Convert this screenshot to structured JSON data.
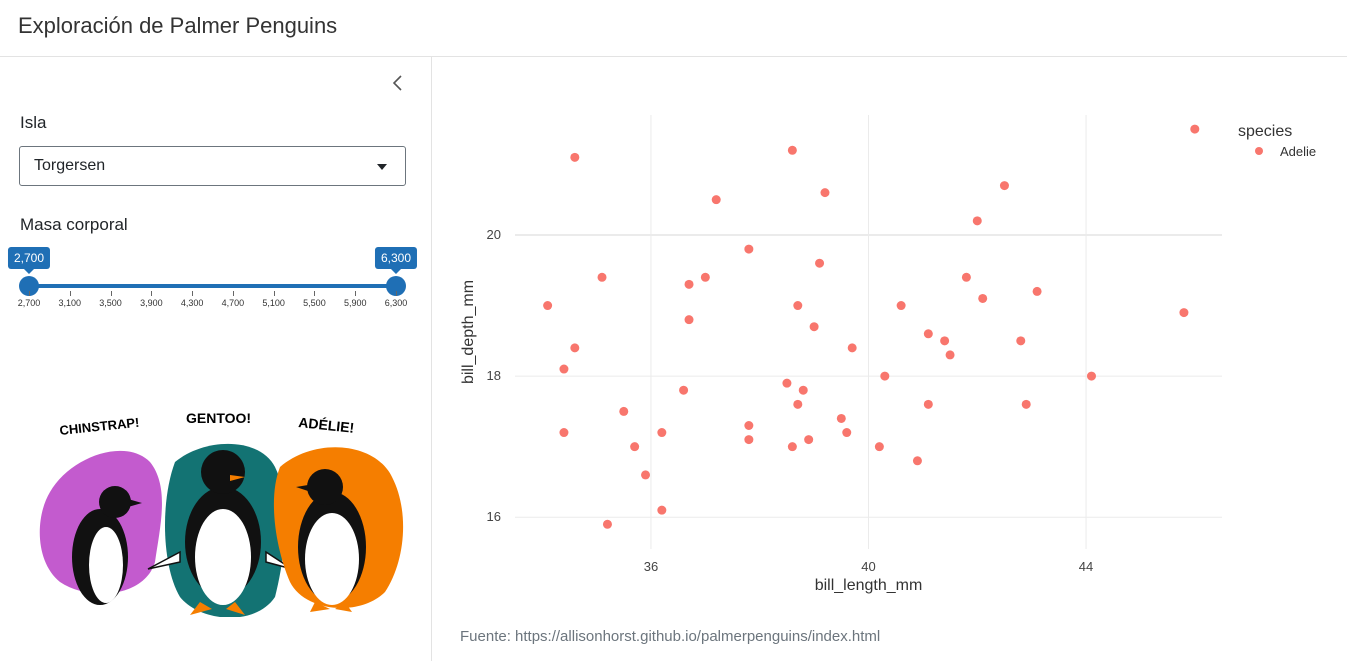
{
  "header": {
    "title": "Exploración de Palmer Penguins"
  },
  "sidebar": {
    "island_label": "Isla",
    "island_value": "Torgersen",
    "mass_label": "Masa corporal",
    "slider": {
      "min_label": "2,700",
      "max_label": "6,300",
      "ticks": [
        "2,700",
        "3,100",
        "3,500",
        "3,900",
        "4,300",
        "4,700",
        "5,100",
        "5,500",
        "5,900",
        "6,300"
      ],
      "min": 2700,
      "max": 6300,
      "from": 2700,
      "to": 6300
    },
    "artwork": {
      "labels": [
        "CHINSTRAP!",
        "GENTOO!",
        "ADÉLIE!"
      ],
      "colors": {
        "chinstrap": "#c35bce",
        "gentoo": "#137373",
        "adelie": "#f57e00"
      }
    }
  },
  "source_text": "Fuente: https://allisonhorst.github.io/palmerpenguins/index.html",
  "chart_data": {
    "type": "scatter",
    "xlabel": "bill_length_mm",
    "ylabel": "bill_depth_mm",
    "xlim": [
      33.5,
      46.5
    ],
    "ylim": [
      15.55,
      21.7
    ],
    "xticks": [
      36,
      40,
      44
    ],
    "yticks": [
      16,
      18,
      20
    ],
    "grid": true,
    "legend_title": "species",
    "legend_position": "top-right",
    "series": [
      {
        "name": "Adelie",
        "color": "#f8766d",
        "points": [
          [
            46.0,
            21.5
          ],
          [
            34.6,
            21.1
          ],
          [
            38.6,
            21.2
          ],
          [
            39.2,
            20.6
          ],
          [
            37.2,
            20.5
          ],
          [
            42.5,
            20.7
          ],
          [
            42.0,
            20.2
          ],
          [
            37.8,
            19.8
          ],
          [
            39.1,
            19.6
          ],
          [
            35.1,
            19.4
          ],
          [
            37.0,
            19.4
          ],
          [
            41.8,
            19.4
          ],
          [
            36.7,
            19.3
          ],
          [
            43.1,
            19.2
          ],
          [
            42.1,
            19.1
          ],
          [
            34.1,
            19.0
          ],
          [
            38.7,
            19.0
          ],
          [
            40.6,
            19.0
          ],
          [
            45.8,
            18.9
          ],
          [
            36.7,
            18.8
          ],
          [
            39.0,
            18.7
          ],
          [
            41.1,
            18.6
          ],
          [
            41.4,
            18.5
          ],
          [
            42.8,
            18.5
          ],
          [
            34.6,
            18.4
          ],
          [
            39.7,
            18.4
          ],
          [
            41.5,
            18.3
          ],
          [
            34.4,
            18.1
          ],
          [
            40.3,
            18.0
          ],
          [
            44.1,
            18.0
          ],
          [
            38.5,
            17.9
          ],
          [
            36.6,
            17.8
          ],
          [
            38.8,
            17.8
          ],
          [
            38.7,
            17.6
          ],
          [
            41.1,
            17.6
          ],
          [
            42.9,
            17.6
          ],
          [
            35.5,
            17.5
          ],
          [
            39.5,
            17.4
          ],
          [
            37.8,
            17.3
          ],
          [
            34.4,
            17.2
          ],
          [
            36.2,
            17.2
          ],
          [
            39.6,
            17.2
          ],
          [
            37.8,
            17.1
          ],
          [
            38.9,
            17.1
          ],
          [
            35.7,
            17.0
          ],
          [
            38.6,
            17.0
          ],
          [
            40.2,
            17.0
          ],
          [
            40.9,
            16.8
          ],
          [
            35.9,
            16.6
          ],
          [
            36.2,
            16.1
          ],
          [
            35.2,
            15.9
          ]
        ]
      }
    ]
  }
}
